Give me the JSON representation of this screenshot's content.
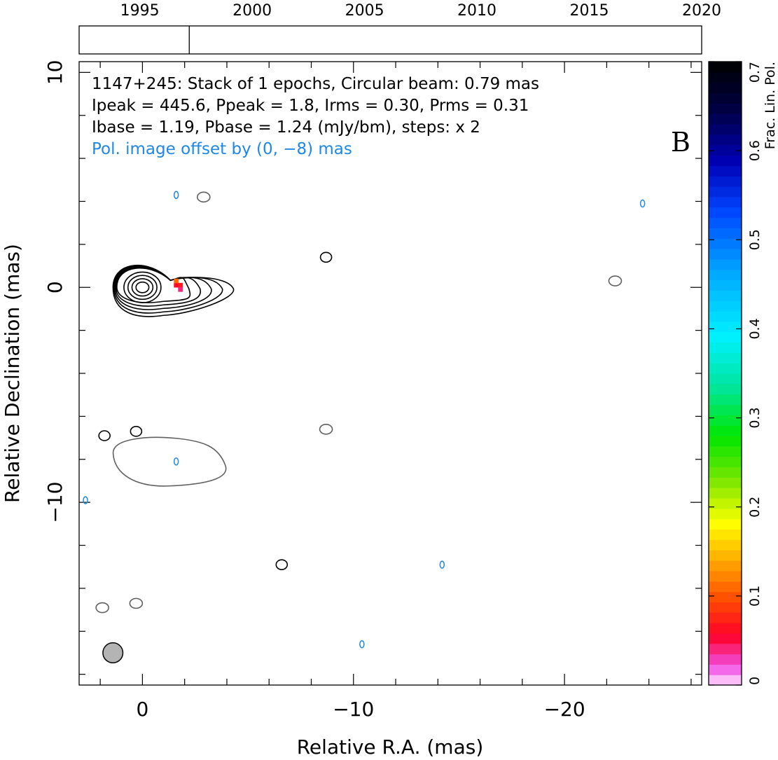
{
  "chart_data": {
    "type": "contour",
    "source": "1147+245",
    "panel_letter": "B",
    "info_lines": [
      "1147+245: Stack of 1 epochs, Circular beam: 0.79 mas",
      "Ipeak = 445.6, Ppeak = 1.8, Irms = 0.30, Prms = 0.31",
      "Ibase = 1.19, Pbase = 1.24 (mJy/bm), steps: x 2",
      "Pol. image offset by (0, −8) mas"
    ],
    "ipeak": 445.6,
    "ppeak": 1.8,
    "irms": 0.3,
    "prms": 0.31,
    "ibase": 1.19,
    "pbase": 1.24,
    "contour_step_factor": 2,
    "pol_offset_mas": [
      0,
      -8
    ],
    "beam_fwhm_mas": 0.79,
    "xlabel": "Relative R.A. (mas)",
    "ylabel": "Relative Declination (mas)",
    "xlim": [
      3,
      -26.5
    ],
    "ylim": [
      -18.5,
      10.5
    ],
    "x_ticks": [
      0,
      -10,
      -20
    ],
    "x_tick_labels": [
      "0",
      "−10",
      "−20"
    ],
    "y_ticks": [
      10,
      0,
      -10
    ],
    "y_tick_labels": [
      "10",
      "0",
      "−10"
    ],
    "timeline": {
      "years": [
        1995,
        2000,
        2005,
        2010,
        2015,
        2020
      ],
      "range": [
        1992.3,
        2020
      ],
      "epochs": [
        1997.2
      ]
    },
    "colorbar": {
      "label": "Frac. Lin. Pol.",
      "range": [
        0,
        0.7
      ],
      "ticks": [
        0,
        0.1,
        0.2,
        0.3,
        0.4,
        0.5,
        0.6,
        0.7
      ],
      "tick_labels": [
        "0",
        "0.1",
        "0.2",
        "0.3",
        "0.4",
        "0.5",
        "0.6",
        "0.7"
      ]
    },
    "total_intensity_contours": {
      "core_center": [
        0,
        0
      ],
      "levels": 9,
      "isolated_positive": [
        [
          -8.7,
          1.4
        ],
        [
          -6.6,
          -12.9
        ],
        [
          1.8,
          -6.9
        ],
        [
          0.3,
          -6.7
        ]
      ],
      "isolated_negative": [
        [
          -2.9,
          4.2
        ],
        [
          -22.4,
          0.3
        ],
        [
          -8.7,
          -6.6
        ],
        [
          1.9,
          -14.9
        ],
        [
          0.3,
          -14.7
        ]
      ]
    },
    "polarization_contours": [
      [
        -1.6,
        4.3
      ],
      [
        -23.7,
        3.9
      ],
      [
        -1.6,
        -8.1
      ],
      [
        -14.2,
        -12.9
      ],
      [
        -10.4,
        -16.6
      ],
      [
        2.7,
        -9.9
      ]
    ],
    "fpol_pixels": [
      {
        "x": -1.6,
        "y": 0.1,
        "fpol": 0.06
      },
      {
        "x": -1.8,
        "y": 0.1,
        "fpol": 0.07
      },
      {
        "x": -1.6,
        "y": 0.3,
        "fpol": 0.11
      },
      {
        "x": -1.8,
        "y": -0.1,
        "fpol": 0.04
      }
    ],
    "beam_position": [
      1.4,
      -17
    ]
  },
  "colors": {
    "positive_contour": "#000000",
    "negative_contour": "#606060",
    "polarization": "#1e88e5",
    "pol_offset_text": "#1e88e5",
    "beam_fill": "#b4b4b4"
  }
}
